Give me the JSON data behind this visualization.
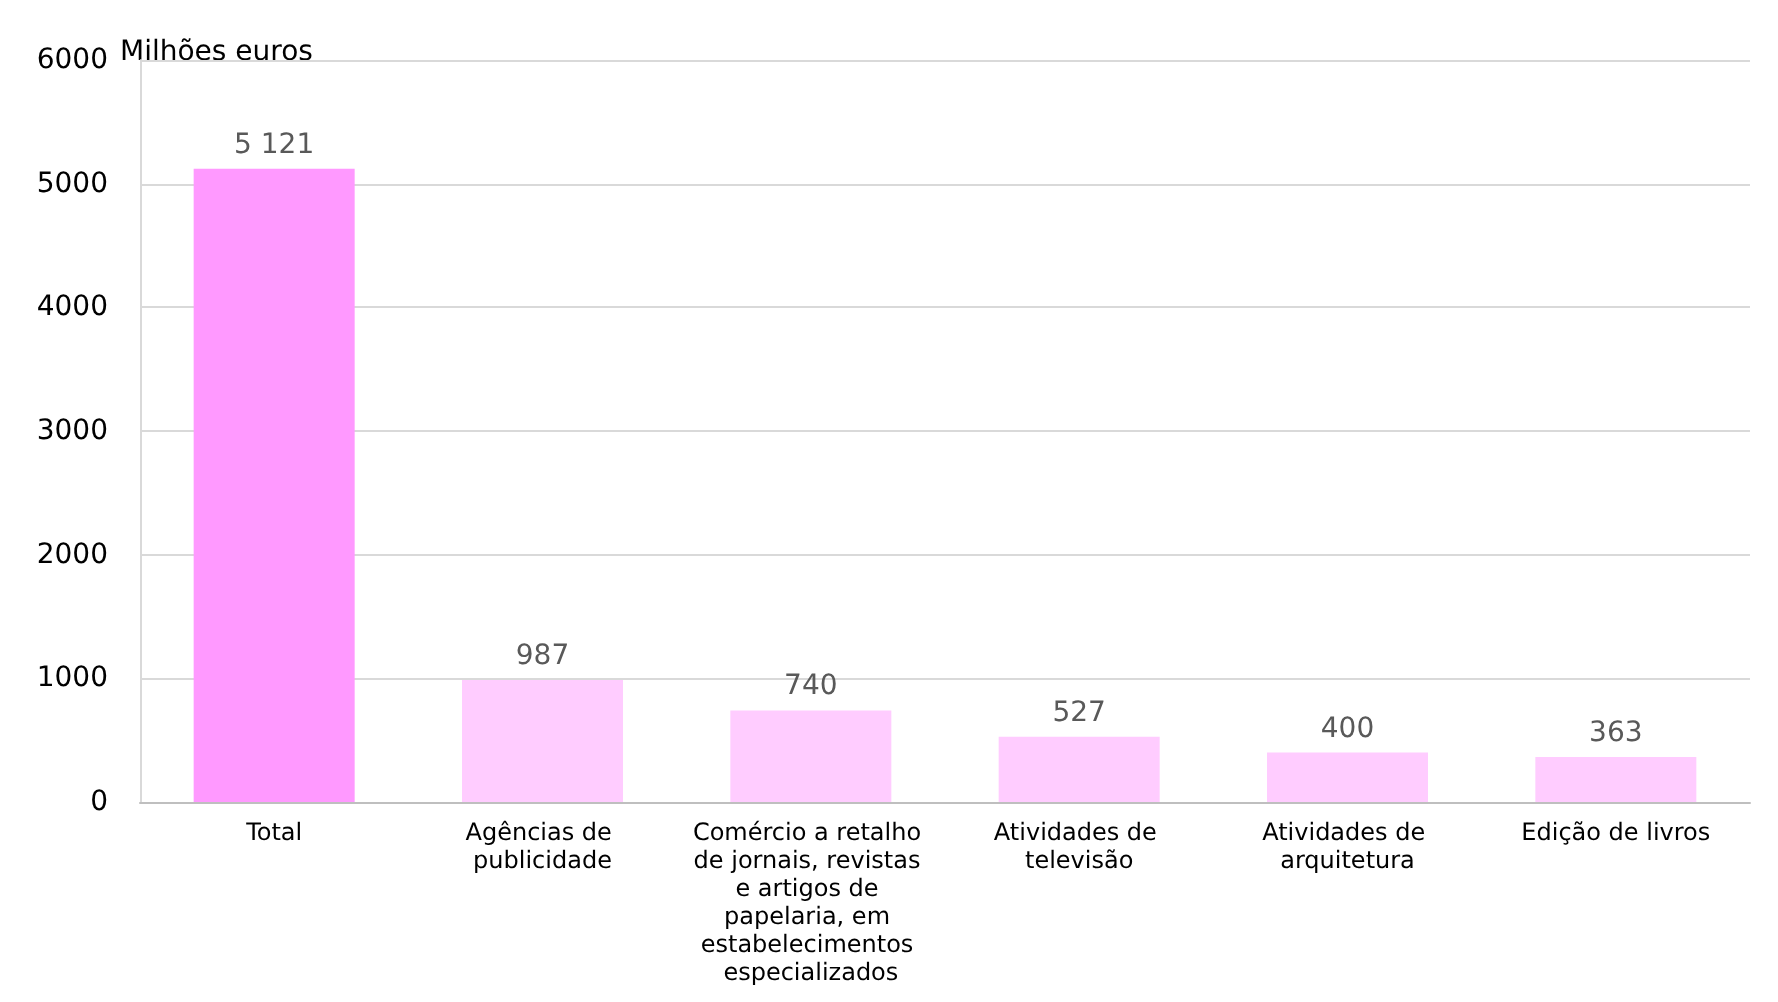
{
  "chart_data": {
    "type": "bar",
    "ylabel": "Milhões euros",
    "categories": [
      "Total",
      "Agências de publicidade",
      "Comércio a retalho de jornais, revistas e artigos de papelaria, em estabelecimentos especializados",
      "Atividades de televisão",
      "Atividades de arquitetura",
      "Edição de livros"
    ],
    "values": [
      5121,
      987,
      740,
      527,
      400,
      363
    ],
    "value_labels": [
      "5 121",
      "987",
      "740",
      "527",
      "400",
      "363"
    ],
    "colors": [
      "#ff99ff",
      "#ffccff",
      "#ffccff",
      "#ffccff",
      "#ffccff",
      "#ffccff"
    ],
    "ylim": [
      0,
      6000
    ],
    "yticks": [
      0,
      1000,
      2000,
      3000,
      4000,
      5000,
      6000
    ],
    "grid": "y"
  }
}
